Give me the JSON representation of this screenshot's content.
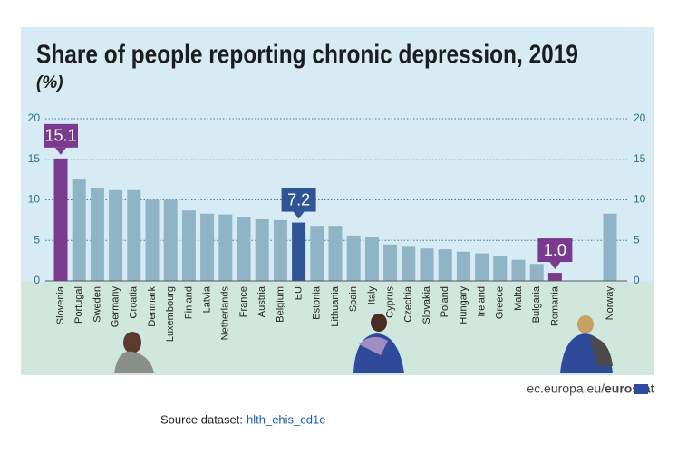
{
  "chart_data": {
    "type": "bar",
    "title": "Share of people reporting chronic depression, 2019",
    "subtitle": "(%)",
    "categories": [
      "Slovenia",
      "Portugal",
      "Sweden",
      "Germany",
      "Croatia",
      "Denmark",
      "Luxembourg",
      "Finland",
      "Latvia",
      "Netherlands",
      "France",
      "Austria",
      "Belgium",
      "EU",
      "Estonia",
      "Lithuania",
      "Spain",
      "Italy",
      "Cyprus",
      "Czechia",
      "Slovakia",
      "Poland",
      "Hungary",
      "Ireland",
      "Greece",
      "Malta",
      "Bulgaria",
      "Romania",
      null,
      null,
      "Norway"
    ],
    "values": [
      15.1,
      12.5,
      11.4,
      11.2,
      11.2,
      10.0,
      10.0,
      8.7,
      8.3,
      8.2,
      7.9,
      7.6,
      7.5,
      7.2,
      6.8,
      6.8,
      5.6,
      5.4,
      4.5,
      4.2,
      4.0,
      3.9,
      3.6,
      3.4,
      3.1,
      2.6,
      2.1,
      1.0,
      null,
      null,
      8.3
    ],
    "value_labels": [
      "15.1",
      null,
      null,
      null,
      null,
      null,
      null,
      null,
      null,
      null,
      null,
      null,
      null,
      "7.2",
      null,
      null,
      null,
      null,
      null,
      null,
      null,
      null,
      null,
      null,
      null,
      null,
      null,
      "1.0",
      null,
      null,
      null
    ],
    "colors": [
      "#7a3b8f",
      "#8fb4c6",
      "#8fb4c6",
      "#8fb4c6",
      "#8fb4c6",
      "#8fb4c6",
      "#8fb4c6",
      "#8fb4c6",
      "#8fb4c6",
      "#8fb4c6",
      "#8fb4c6",
      "#8fb4c6",
      "#8fb4c6",
      "#2f5597",
      "#8fb4c6",
      "#8fb4c6",
      "#8fb4c6",
      "#8fb4c6",
      "#8fb4c6",
      "#8fb4c6",
      "#8fb4c6",
      "#8fb4c6",
      "#8fb4c6",
      "#8fb4c6",
      "#8fb4c6",
      "#8fb4c6",
      "#8fb4c6",
      "#7a3b8f",
      null,
      null,
      "#8fb4c6"
    ],
    "ylim": [
      0,
      20
    ],
    "yticks": [
      0,
      5,
      10,
      15,
      20
    ],
    "grid": true,
    "credit": "ec.europa.eu/",
    "credit_brand": "eurostat",
    "source": "Source dataset:",
    "source_link": "hlth_ehis_cd1e"
  }
}
